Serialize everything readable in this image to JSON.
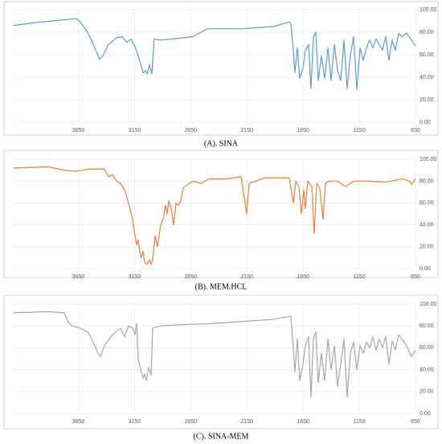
{
  "chart_data": [
    {
      "type": "line",
      "caption": "(A). SINA",
      "xlim": [
        4225,
        650
      ],
      "ylim": [
        0,
        100
      ],
      "xticks": [
        3650,
        3150,
        2650,
        2150,
        1650,
        1150,
        650
      ],
      "yticks": [
        {
          "value": 0,
          "label": "0.00"
        },
        {
          "value": 20,
          "label": "20.00"
        },
        {
          "value": 40,
          "label": "40.00"
        },
        {
          "value": 60,
          "label": "60.00"
        },
        {
          "value": 80,
          "label": "80.00"
        },
        {
          "value": 100,
          "label": "100.00"
        }
      ],
      "grid": true,
      "x": [
        4225,
        3989,
        3775,
        3667,
        3632,
        3574,
        3524,
        3460,
        3431,
        3381,
        3310,
        3260,
        3217,
        3181,
        3145,
        3117,
        3088,
        3074,
        3052,
        3038,
        3017,
        2995,
        2974,
        2917,
        2809,
        2631,
        2502,
        2202,
        1916,
        1773,
        1758,
        1737,
        1723,
        1701,
        1680,
        1651,
        1630,
        1601,
        1580,
        1558,
        1537,
        1515,
        1487,
        1458,
        1429,
        1401,
        1372,
        1343,
        1315,
        1286,
        1258,
        1229,
        1201,
        1172,
        1143,
        1115,
        1086,
        1057,
        1029,
        1000,
        972,
        943,
        915,
        886,
        858,
        829,
        800,
        772,
        729,
        686,
        650
      ],
      "series": [
        {
          "color": "#5b9bd5",
          "values": [
            86,
            89,
            91,
            92,
            89,
            81,
            71,
            56,
            59,
            69,
            75,
            76,
            71,
            74,
            67,
            59,
            49,
            44,
            46,
            43,
            51,
            43,
            74,
            73,
            74,
            76,
            83,
            83,
            85,
            89,
            87,
            64,
            44,
            66,
            39,
            48,
            64,
            69,
            30,
            76,
            80,
            37,
            59,
            39,
            66,
            37,
            69,
            46,
            37,
            73,
            30,
            59,
            76,
            29,
            66,
            55,
            66,
            73,
            66,
            74,
            69,
            64,
            76,
            55,
            73,
            64,
            79,
            76,
            79,
            73,
            68
          ]
        }
      ]
    },
    {
      "type": "line",
      "caption": "(B). MEM.HCL",
      "xlim": [
        4225,
        650
      ],
      "ylim": [
        0,
        100
      ],
      "xticks": [
        3650,
        3150,
        2650,
        2150,
        1650,
        1150,
        650
      ],
      "yticks": [
        {
          "value": 0,
          "label": "0.00"
        },
        {
          "value": 20,
          "label": "20.00"
        },
        {
          "value": 40,
          "label": "40.00"
        },
        {
          "value": 60,
          "label": "60.00"
        },
        {
          "value": 80,
          "label": "80.00"
        },
        {
          "value": 100,
          "label": "100.00"
        }
      ],
      "grid": true,
      "x": [
        4225,
        3917,
        3775,
        3667,
        3560,
        3417,
        3381,
        3346,
        3310,
        3274,
        3238,
        3203,
        3167,
        3145,
        3131,
        3117,
        3102,
        3088,
        3074,
        3060,
        3038,
        3017,
        3002,
        2988,
        2967,
        2945,
        2917,
        2895,
        2874,
        2859,
        2845,
        2824,
        2802,
        2781,
        2759,
        2738,
        2716,
        2688,
        2631,
        2559,
        2488,
        2345,
        2202,
        2166,
        2152,
        2130,
        1987,
        1773,
        1737,
        1715,
        1687,
        1665,
        1644,
        1630,
        1608,
        1572,
        1551,
        1529,
        1501,
        1472,
        1451,
        1415,
        1343,
        1272,
        1201,
        1057,
        915,
        772,
        700,
        686,
        650
      ],
      "series": [
        {
          "color": "#ed7d31",
          "values": [
            92,
            93,
            90,
            89,
            91,
            91,
            84,
            86,
            80,
            78,
            72,
            60,
            45,
            30,
            22,
            26,
            15,
            10,
            16,
            6,
            4,
            8,
            4,
            8,
            30,
            20,
            40,
            45,
            58,
            50,
            62,
            55,
            40,
            60,
            58,
            62,
            74,
            76,
            80,
            78,
            82,
            82,
            84,
            60,
            50,
            78,
            83,
            83,
            60,
            80,
            75,
            50,
            72,
            55,
            80,
            75,
            32,
            78,
            73,
            45,
            78,
            80,
            80,
            75,
            80,
            80,
            79,
            82,
            80,
            77,
            82
          ]
        }
      ]
    },
    {
      "type": "line",
      "caption": "(C). SINA-MEM",
      "xlim": [
        4225,
        650
      ],
      "ylim": [
        0,
        100
      ],
      "xticks": [
        3650,
        3150,
        2650,
        2150,
        1650,
        1150,
        650
      ],
      "yticks": [
        {
          "value": 0,
          "label": "0.00"
        },
        {
          "value": 20,
          "label": "20.00"
        },
        {
          "value": 40,
          "label": "40.00"
        },
        {
          "value": 60,
          "label": "60.00"
        },
        {
          "value": 80,
          "label": "80.00"
        },
        {
          "value": 100,
          "label": "100.00"
        }
      ],
      "grid": true,
      "x": [
        4225,
        3917,
        3775,
        3739,
        3703,
        3632,
        3560,
        3503,
        3474,
        3453,
        3417,
        3346,
        3274,
        3238,
        3203,
        3167,
        3145,
        3131,
        3117,
        3095,
        3074,
        3060,
        3045,
        3024,
        3002,
        2988,
        2917,
        2774,
        2488,
        2202,
        1916,
        1758,
        1737,
        1723,
        1701,
        1680,
        1651,
        1630,
        1601,
        1580,
        1558,
        1537,
        1515,
        1487,
        1458,
        1429,
        1401,
        1372,
        1343,
        1315,
        1286,
        1258,
        1229,
        1201,
        1172,
        1143,
        1115,
        1086,
        1057,
        1029,
        1000,
        972,
        943,
        915,
        886,
        858,
        829,
        800,
        772,
        729,
        686,
        650
      ],
      "series": [
        {
          "color": "#a5a5a5",
          "values": [
            92,
            93,
            92,
            83,
            80,
            78,
            74,
            62,
            55,
            52,
            62,
            72,
            78,
            70,
            80,
            78,
            72,
            82,
            50,
            40,
            32,
            36,
            30,
            42,
            35,
            78,
            80,
            81,
            82,
            84,
            86,
            89,
            60,
            38,
            68,
            30,
            45,
            62,
            70,
            15,
            68,
            75,
            28,
            55,
            30,
            68,
            40,
            62,
            25,
            45,
            68,
            15,
            55,
            65,
            40,
            62,
            55,
            65,
            60,
            70,
            58,
            68,
            60,
            70,
            45,
            66,
            58,
            72,
            68,
            62,
            52,
            58
          ]
        }
      ]
    }
  ]
}
